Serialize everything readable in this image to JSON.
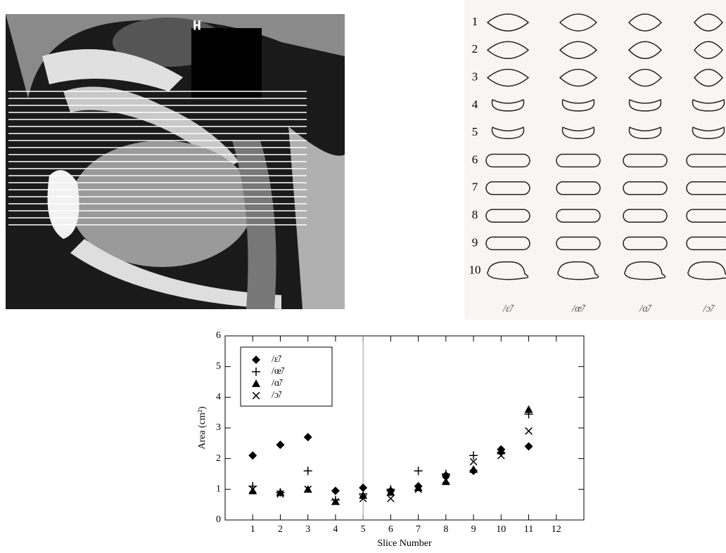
{
  "mri": {
    "label": "H"
  },
  "contours": {
    "rows": [
      "1",
      "2",
      "3",
      "4",
      "5",
      "6",
      "7",
      "8",
      "9",
      "10"
    ],
    "columns": [
      "/ɛ̃/",
      "/œ̃/",
      "/ɑ̃/",
      "/ɔ̃/"
    ]
  },
  "chart_data": {
    "type": "scatter",
    "xlabel": "Slice Number",
    "ylabel": "Area (cm²)",
    "x": [
      1,
      2,
      3,
      4,
      5,
      6,
      7,
      8,
      9,
      10,
      11
    ],
    "series": [
      {
        "name": "/ɛ̃/",
        "marker": "diamond",
        "color": "#000000",
        "values": [
          2.1,
          2.45,
          2.7,
          0.95,
          1.05,
          0.95,
          1.1,
          1.45,
          1.6,
          2.3,
          2.4
        ]
      },
      {
        "name": "/œ̃/",
        "marker": "plus",
        "color": "#000000",
        "values": [
          1.1,
          0.9,
          1.6,
          0.65,
          0.85,
          1.0,
          1.6,
          1.5,
          2.1,
          2.2,
          3.45
        ]
      },
      {
        "name": "/ɑ̃/",
        "marker": "triangle",
        "color": "#000000",
        "values": [
          0.95,
          0.9,
          1.0,
          0.6,
          0.8,
          0.9,
          1.05,
          1.25,
          1.65,
          2.25,
          3.6
        ]
      },
      {
        "name": "/ɔ̃/",
        "marker": "cross",
        "color": "#000000",
        "values": [
          1.0,
          0.85,
          1.0,
          0.6,
          0.7,
          0.7,
          1.0,
          1.3,
          1.9,
          2.1,
          2.9
        ]
      }
    ],
    "xlim": [
      0,
      13
    ],
    "ylim": [
      0,
      6
    ],
    "xticks": [
      1,
      2,
      3,
      4,
      5,
      6,
      7,
      8,
      9,
      10,
      11,
      12
    ],
    "yticks": [
      0,
      1,
      2,
      3,
      4,
      5,
      6
    ],
    "vertical_line": 5,
    "legend": "upper left"
  }
}
